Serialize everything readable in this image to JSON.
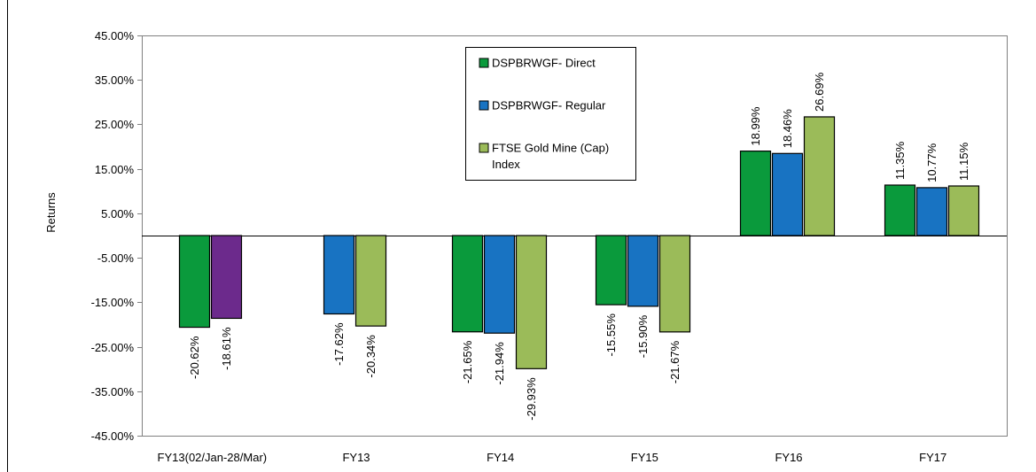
{
  "colors": {
    "direct": "#0a9a3c",
    "regular": "#1873c2",
    "index": "#9bbb59",
    "fy13_partial_second": "#6c2a8c"
  },
  "chart_data": {
    "type": "bar",
    "ylabel": "Returns",
    "xlabel": "",
    "ylim": [
      -45,
      45
    ],
    "yticks": [
      "45.00%",
      "35.00%",
      "25.00%",
      "15.00%",
      "5.00%",
      "-5.00%",
      "-15.00%",
      "-25.00%",
      "-35.00%",
      "-45.00%"
    ],
    "grid": false,
    "legend_position": "top-center",
    "categories": [
      "FY13(02/Jan-28/Mar)",
      "FY13",
      "FY14",
      "FY15",
      "FY16",
      "FY17"
    ],
    "groups": [
      {
        "category": "FY13(02/Jan-28/Mar)",
        "bars": [
          {
            "series": "direct",
            "value": -20.62,
            "label": "-20.62%"
          },
          {
            "series": "fy13_partial_second",
            "value": -18.61,
            "label": "-18.61%"
          }
        ]
      },
      {
        "category": "FY13",
        "bars": [
          {
            "series": "regular",
            "value": -17.62,
            "label": "-17.62%"
          },
          {
            "series": "index",
            "value": -20.34,
            "label": "-20.34%"
          }
        ]
      },
      {
        "category": "FY14",
        "bars": [
          {
            "series": "direct",
            "value": -21.65,
            "label": "-21.65%"
          },
          {
            "series": "regular",
            "value": -21.94,
            "label": "-21.94%"
          },
          {
            "series": "index",
            "value": -29.93,
            "label": "-29.93%"
          }
        ]
      },
      {
        "category": "FY15",
        "bars": [
          {
            "series": "direct",
            "value": -15.55,
            "label": "-15.55%"
          },
          {
            "series": "regular",
            "value": -15.9,
            "label": "-15.90%"
          },
          {
            "series": "index",
            "value": -21.67,
            "label": "-21.67%"
          }
        ]
      },
      {
        "category": "FY16",
        "bars": [
          {
            "series": "direct",
            "value": 18.99,
            "label": "18.99%"
          },
          {
            "series": "regular",
            "value": 18.46,
            "label": "18.46%"
          },
          {
            "series": "index",
            "value": 26.69,
            "label": "26.69%"
          }
        ]
      },
      {
        "category": "FY17",
        "bars": [
          {
            "series": "direct",
            "value": 11.35,
            "label": "11.35%"
          },
          {
            "series": "regular",
            "value": 10.77,
            "label": "10.77%"
          },
          {
            "series": "index",
            "value": 11.15,
            "label": "11.15%"
          }
        ]
      }
    ],
    "legend": [
      {
        "series": "direct",
        "label": "DSPBRWGF- Direct"
      },
      {
        "series": "regular",
        "label": "DSPBRWGF- Regular"
      },
      {
        "series": "index",
        "label": "FTSE Gold Mine (Cap)",
        "label2": "Index"
      }
    ]
  }
}
